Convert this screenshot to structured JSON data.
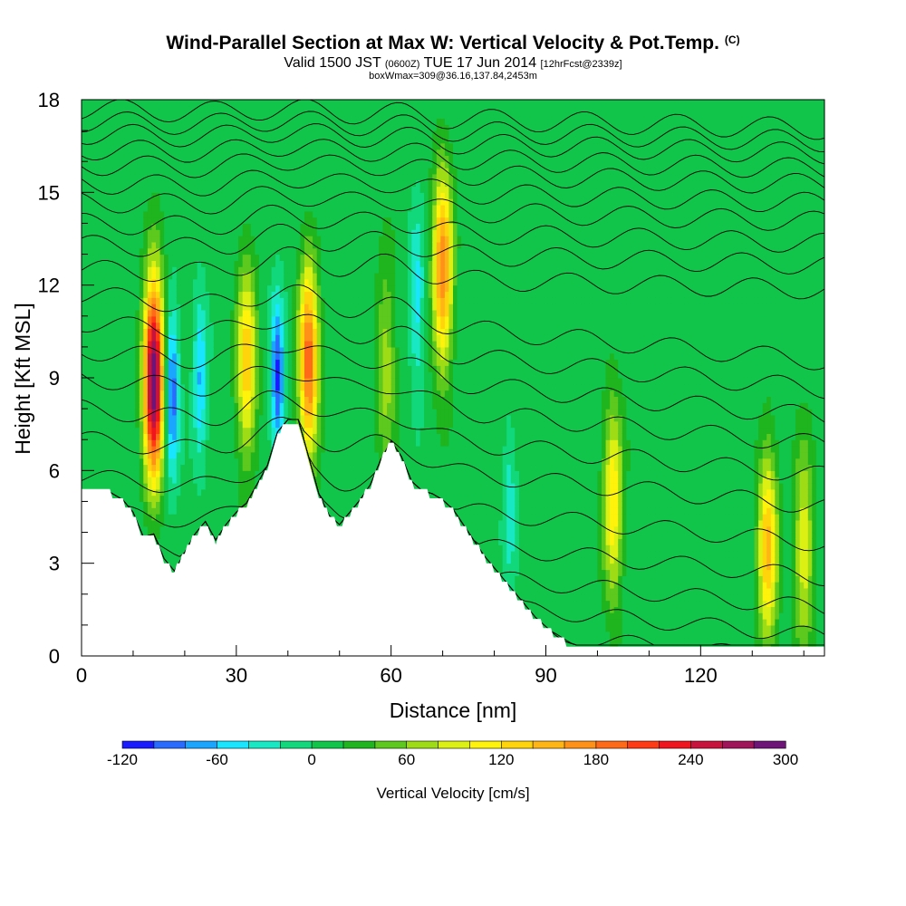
{
  "header": {
    "title": "Wind-Parallel Section at Max W: Vertical Velocity & Pot.Temp.",
    "title_suffix": "(C)",
    "subtitle_a": "Valid 1500 JST",
    "subtitle_b": "(0600Z)",
    "subtitle_c": "TUE 17 Jun 2014",
    "subtitle_d": "[12hrFcst@2339z]",
    "subtitle2": "boxWmax=309@36.16,137.84,2453m"
  },
  "chart_data": {
    "type": "heatmap",
    "xlabel": "Distance [nm]",
    "ylabel": "Height [Kft MSL]",
    "xlim": [
      0,
      144
    ],
    "ylim": [
      0,
      18
    ],
    "x_ticks": [
      0,
      30,
      60,
      90,
      120
    ],
    "y_ticks": [
      0,
      3,
      6,
      9,
      12,
      15,
      18
    ],
    "colorbar": {
      "label": "Vertical Velocity [cm/s]",
      "min": -120,
      "max": 300,
      "step": 20,
      "tick_labels": [
        "-120",
        "-60",
        "0",
        "60",
        "120",
        "180",
        "240",
        "300"
      ],
      "colors": [
        "#1a1aff",
        "#2a6bff",
        "#1aa6ff",
        "#19e5ff",
        "#19e8c5",
        "#12d87c",
        "#10c54a",
        "#1eb51f",
        "#5dc81e",
        "#9edc16",
        "#ddf014",
        "#fff20b",
        "#ffd40a",
        "#ffb614",
        "#ff9119",
        "#ff6a19",
        "#ff3a14",
        "#f0141e",
        "#c8143c",
        "#a0145a",
        "#6e1478"
      ]
    },
    "terrain_kft": [
      [
        0,
        5.3
      ],
      [
        5,
        5.3
      ],
      [
        8,
        5
      ],
      [
        10,
        4.6
      ],
      [
        12,
        3.8
      ],
      [
        14,
        3.9
      ],
      [
        16,
        3.1
      ],
      [
        18,
        2.7
      ],
      [
        20,
        3.3
      ],
      [
        22,
        3.9
      ],
      [
        24,
        4.3
      ],
      [
        26,
        3.7
      ],
      [
        28,
        4.2
      ],
      [
        30,
        4.6
      ],
      [
        32,
        4.9
      ],
      [
        34,
        5.5
      ],
      [
        36,
        6.1
      ],
      [
        38,
        7.2
      ],
      [
        40,
        7.6
      ],
      [
        42,
        7.6
      ],
      [
        44,
        6.4
      ],
      [
        46,
        5.2
      ],
      [
        48,
        4.5
      ],
      [
        50,
        4.2
      ],
      [
        52,
        4.6
      ],
      [
        54,
        5.0
      ],
      [
        56,
        5.5
      ],
      [
        58,
        6.3
      ],
      [
        60,
        6.9
      ],
      [
        62,
        6.4
      ],
      [
        64,
        5.6
      ],
      [
        66,
        5.3
      ],
      [
        68,
        5.2
      ],
      [
        70,
        5.0
      ],
      [
        72,
        4.7
      ],
      [
        74,
        4.2
      ],
      [
        76,
        3.7
      ],
      [
        78,
        3.2
      ],
      [
        80,
        2.8
      ],
      [
        82,
        2.4
      ],
      [
        84,
        2.0
      ],
      [
        86,
        1.6
      ],
      [
        88,
        1.2
      ],
      [
        90,
        0.9
      ],
      [
        92,
        0.6
      ],
      [
        94,
        0.4
      ],
      [
        96,
        0.3
      ],
      [
        144,
        0.3
      ]
    ],
    "updraft_cores": [
      {
        "x": 14,
        "y": 9.0,
        "w_max": 300
      },
      {
        "x": 32,
        "y": 9.5,
        "w_max": 125
      },
      {
        "x": 44,
        "y": 9.5,
        "w_max": 185
      },
      {
        "x": 70,
        "y": 12.5,
        "w_max": 170
      },
      {
        "x": 59,
        "y": 9.5,
        "w_max": 65
      },
      {
        "x": 103,
        "y": 5.0,
        "w_max": 110
      },
      {
        "x": 133,
        "y": 3.5,
        "w_max": 135
      },
      {
        "x": 140,
        "y": 3.5,
        "w_max": 90
      }
    ],
    "downdraft_cores": [
      {
        "x": 17.5,
        "y": 8.5,
        "w_min": -110
      },
      {
        "x": 23,
        "y": 9.0,
        "w_min": -70
      },
      {
        "x": 38,
        "y": 9.0,
        "w_min": -110
      },
      {
        "x": 65,
        "y": 11.5,
        "w_min": -60
      },
      {
        "x": 83,
        "y": 5.0,
        "w_min": -40
      }
    ],
    "theta_contour_base_kft": [
      0.5,
      1.2,
      2.0,
      2.8,
      3.7,
      4.7,
      5.8,
      7.0,
      8.0,
      9.0,
      9.9,
      10.8,
      11.7,
      12.5,
      13.3,
      14.0,
      14.7,
      15.3,
      15.9,
      16.4,
      16.9,
      17.3,
      17.7
    ]
  }
}
